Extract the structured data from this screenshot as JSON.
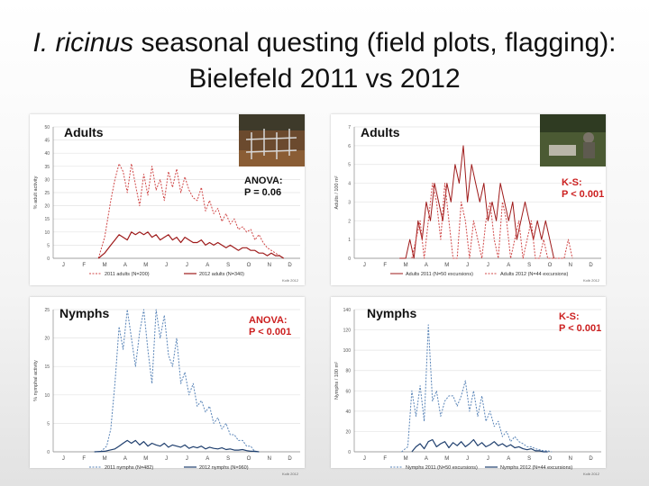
{
  "slide": {
    "title_species": "I. ricinus",
    "title_rest": " seasonal questing (field plots, flagging):",
    "title_line2": "Bielefeld 2011 vs 2012"
  },
  "colors": {
    "red2011": "#d04848",
    "red2012": "#9e1a1a",
    "blue2011": "#5a85b8",
    "blue2012": "#1f3f6e",
    "stat_red": "#cc1f1f"
  },
  "chart_data": [
    {
      "id": "adults_plots",
      "type": "line",
      "label": "Adults",
      "ylabel": "% adult activity",
      "ylim": [
        0,
        50
      ],
      "yticks": [
        0,
        5,
        10,
        15,
        20,
        25,
        30,
        35,
        40,
        45,
        50
      ],
      "months": [
        "J",
        "F",
        "M",
        "A",
        "M",
        "J",
        "J",
        "A",
        "S",
        "O",
        "N",
        "D"
      ],
      "stat_line1": "ANOVA:",
      "stat_line2": "P = 0.06",
      "legend": [
        "2011 adults (N=200)",
        "2012 adults (N=340)"
      ],
      "credit": "Kolb 2012",
      "series": [
        {
          "name": "2011 adults (N=200)",
          "x": [
            2.2,
            2.5,
            2.8,
            3.0,
            3.2,
            3.4,
            3.6,
            3.8,
            4.0,
            4.2,
            4.4,
            4.6,
            4.8,
            5.0,
            5.2,
            5.4,
            5.6,
            5.8,
            6.0,
            6.2,
            6.4,
            6.6,
            6.8,
            7.0,
            7.2,
            7.4,
            7.6,
            7.8,
            8.0,
            8.2,
            8.4,
            8.6,
            8.8,
            9.0,
            9.2,
            9.4,
            9.6,
            9.8,
            10.0,
            10.2,
            10.4,
            10.6,
            10.8,
            11.0,
            11.2
          ],
          "y": [
            0,
            8,
            22,
            30,
            36,
            33,
            25,
            36,
            28,
            20,
            32,
            24,
            35,
            26,
            30,
            22,
            33,
            27,
            34,
            25,
            31,
            26,
            23,
            22,
            27,
            18,
            22,
            17,
            19,
            14,
            17,
            13,
            15,
            11,
            12,
            10,
            11,
            7,
            9,
            6,
            4,
            3,
            2,
            1,
            0
          ]
        },
        {
          "name": "2012 adults (N=340)",
          "x": [
            2.2,
            2.5,
            2.8,
            3.0,
            3.2,
            3.4,
            3.6,
            3.8,
            4.0,
            4.2,
            4.4,
            4.6,
            4.8,
            5.0,
            5.2,
            5.4,
            5.6,
            5.8,
            6.0,
            6.2,
            6.4,
            6.6,
            6.8,
            7.0,
            7.2,
            7.4,
            7.6,
            7.8,
            8.0,
            8.2,
            8.4,
            8.6,
            8.8,
            9.0,
            9.2,
            9.4,
            9.6,
            9.8,
            10.0,
            10.2,
            10.4,
            10.6,
            10.8,
            11.0,
            11.2
          ],
          "y": [
            0,
            2,
            5,
            7,
            9,
            8,
            7,
            10,
            9,
            10,
            9,
            10,
            8,
            9,
            7,
            8,
            9,
            7,
            8,
            6,
            8,
            7,
            6,
            6,
            7,
            5,
            6,
            5,
            6,
            5,
            4,
            5,
            4,
            3,
            4,
            4,
            3,
            3,
            2,
            2,
            1,
            2,
            1,
            1,
            0
          ]
        }
      ]
    },
    {
      "id": "adults_flagging",
      "type": "line",
      "label": "Adults",
      "ylabel": "Adults / 100 m²",
      "ylim": [
        0,
        7
      ],
      "yticks": [
        0,
        1,
        2,
        3,
        4,
        5,
        6,
        7
      ],
      "months": [
        "J",
        "F",
        "M",
        "A",
        "M",
        "J",
        "J",
        "A",
        "S",
        "O",
        "N",
        "D"
      ],
      "stat_line1": "K-S:",
      "stat_line2": "P < 0.001",
      "legend": [
        "Adults 2011 (N=50 excursions)",
        "Adults 2012 (N=44 excursions)"
      ],
      "credit": "Kolb 2012",
      "series": [
        {
          "name": "Adults 2011 (N=50 excursions)",
          "x": [
            2.2,
            2.5,
            2.7,
            2.9,
            3.1,
            3.3,
            3.5,
            3.7,
            3.9,
            4.1,
            4.3,
            4.5,
            4.7,
            4.9,
            5.1,
            5.3,
            5.5,
            5.7,
            5.9,
            6.1,
            6.3,
            6.5,
            6.7,
            6.9,
            7.1,
            7.3,
            7.5,
            7.7,
            7.9,
            8.1,
            8.3,
            8.5,
            8.7,
            8.9,
            9.1,
            9.3,
            9.5,
            9.7
          ],
          "y": [
            0,
            0,
            1,
            0,
            2,
            1,
            3,
            2,
            4,
            3,
            2,
            4,
            3,
            5,
            4,
            6,
            3,
            5,
            4,
            3,
            4,
            2,
            3,
            2,
            4,
            3,
            2,
            3,
            1,
            2,
            3,
            2,
            1,
            2,
            1,
            2,
            1,
            0
          ]
        },
        {
          "name": "Adults 2012 (N=44 excursions)",
          "x": [
            2.8,
            3.0,
            3.2,
            3.4,
            3.6,
            3.8,
            4.0,
            4.2,
            4.4,
            4.6,
            4.8,
            5.0,
            5.2,
            5.4,
            5.6,
            5.8,
            6.0,
            6.2,
            6.4,
            6.6,
            6.8,
            7.0,
            7.2,
            7.4,
            7.6,
            7.8,
            8.0,
            8.2,
            8.4,
            8.6,
            8.8,
            9.0,
            9.2,
            9.4,
            9.6,
            9.8,
            10.0,
            10.2,
            10.4,
            10.6
          ],
          "y": [
            0,
            1,
            2,
            0,
            2,
            4,
            3,
            1,
            4,
            2,
            0,
            0,
            3,
            2,
            0,
            2,
            1,
            0,
            2,
            3,
            1,
            0,
            3,
            2,
            0,
            1,
            2,
            0,
            1,
            2,
            0,
            0,
            1,
            0,
            0,
            0,
            0,
            0,
            1,
            0
          ]
        }
      ]
    },
    {
      "id": "nymphs_plots",
      "type": "line",
      "label": "Nymphs",
      "ylabel": "% nymphal activity",
      "ylim": [
        0,
        25
      ],
      "yticks": [
        0,
        5,
        10,
        15,
        20,
        25
      ],
      "months": [
        "J",
        "F",
        "M",
        "A",
        "M",
        "J",
        "J",
        "A",
        "S",
        "O",
        "N",
        "D"
      ],
      "stat_line1": "ANOVA:",
      "stat_line2": "P < 0.001",
      "legend": [
        "2011 nymphs (N=482)",
        "2012 nymphs (N=960)"
      ],
      "credit": "Kolb 2012",
      "series": [
        {
          "name": "2011 nymphs (N=482)",
          "x": [
            2.0,
            2.3,
            2.6,
            2.8,
            3.0,
            3.2,
            3.4,
            3.6,
            3.8,
            4.0,
            4.2,
            4.4,
            4.6,
            4.8,
            5.0,
            5.2,
            5.4,
            5.6,
            5.8,
            6.0,
            6.2,
            6.4,
            6.6,
            6.8,
            7.0,
            7.2,
            7.4,
            7.6,
            7.8,
            8.0,
            8.2,
            8.4,
            8.6,
            8.8,
            9.0,
            9.2,
            9.4,
            9.6,
            9.8,
            10.0
          ],
          "y": [
            0,
            0,
            1,
            4,
            12,
            22,
            18,
            25,
            20,
            15,
            21,
            25,
            18,
            12,
            25,
            20,
            24,
            17,
            15,
            20,
            12,
            14,
            10,
            12,
            8,
            9,
            7,
            8,
            5,
            6,
            4,
            5,
            3,
            3,
            2,
            2,
            1,
            1,
            0,
            0
          ]
        },
        {
          "name": "2012 nymphs (N=960)",
          "x": [
            2.0,
            2.5,
            3.0,
            3.2,
            3.4,
            3.6,
            3.8,
            4.0,
            4.2,
            4.4,
            4.6,
            4.8,
            5.0,
            5.2,
            5.4,
            5.6,
            5.8,
            6.0,
            6.2,
            6.4,
            6.6,
            6.8,
            7.0,
            7.2,
            7.4,
            7.6,
            7.8,
            8.0,
            8.2,
            8.4,
            8.6,
            8.8,
            9.0,
            9.2,
            9.4,
            9.6,
            9.8,
            10.0
          ],
          "y": [
            0,
            0.1,
            0.5,
            1.0,
            1.5,
            2.0,
            1.5,
            2.0,
            1.2,
            1.8,
            1.0,
            1.5,
            1.2,
            1.0,
            1.5,
            0.8,
            1.2,
            1.0,
            0.8,
            1.2,
            0.6,
            0.9,
            0.7,
            1.0,
            0.5,
            0.8,
            0.6,
            0.5,
            0.7,
            0.4,
            0.5,
            0.3,
            0.3,
            0.4,
            0.2,
            0.1,
            0.1,
            0
          ]
        }
      ]
    },
    {
      "id": "nymphs_flagging",
      "type": "line",
      "label": "Nymphs",
      "ylabel": "Nymphs / 100 m²",
      "ylim": [
        0,
        140
      ],
      "yticks": [
        0,
        20,
        40,
        60,
        80,
        100,
        120,
        140
      ],
      "months": [
        "J",
        "F",
        "M",
        "A",
        "M",
        "J",
        "J",
        "A",
        "S",
        "O",
        "N",
        "D"
      ],
      "stat_line1": "K-S:",
      "stat_line2": "P < 0.001",
      "legend": [
        "Nymphs 2011 (N=50 excursions)",
        "Nymphs 2012 (N=44 excursions)"
      ],
      "credit": "Kolb 2012",
      "series": [
        {
          "name": "Nymphs 2011 (N=50 excursions)",
          "x": [
            2.3,
            2.6,
            2.8,
            3.0,
            3.2,
            3.4,
            3.6,
            3.8,
            4.0,
            4.2,
            4.4,
            4.6,
            4.8,
            5.0,
            5.2,
            5.4,
            5.6,
            5.8,
            6.0,
            6.2,
            6.4,
            6.6,
            6.8,
            7.0,
            7.2,
            7.4,
            7.6,
            7.8,
            8.0,
            8.2,
            8.4,
            8.6,
            8.8,
            9.0,
            9.2,
            9.4,
            9.6
          ],
          "y": [
            0,
            5,
            60,
            35,
            65,
            30,
            125,
            50,
            60,
            35,
            50,
            55,
            55,
            45,
            55,
            70,
            40,
            60,
            35,
            55,
            30,
            40,
            25,
            30,
            15,
            20,
            10,
            15,
            10,
            8,
            5,
            5,
            3,
            2,
            1,
            1,
            0
          ]
        },
        {
          "name": "Nymphs 2012 (N=44 excursions)",
          "x": [
            2.8,
            3.0,
            3.2,
            3.4,
            3.6,
            3.8,
            4.0,
            4.2,
            4.4,
            4.6,
            4.8,
            5.0,
            5.2,
            5.4,
            5.6,
            5.8,
            6.0,
            6.2,
            6.4,
            6.6,
            6.8,
            7.0,
            7.2,
            7.4,
            7.6,
            7.8,
            8.0,
            8.2,
            8.4,
            8.6,
            8.8,
            9.0,
            9.2,
            9.4
          ],
          "y": [
            0,
            5,
            8,
            3,
            10,
            12,
            5,
            8,
            10,
            4,
            9,
            6,
            10,
            5,
            8,
            12,
            6,
            9,
            5,
            7,
            10,
            6,
            8,
            5,
            7,
            4,
            5,
            3,
            2,
            3,
            1,
            1,
            0,
            0
          ]
        }
      ]
    }
  ]
}
